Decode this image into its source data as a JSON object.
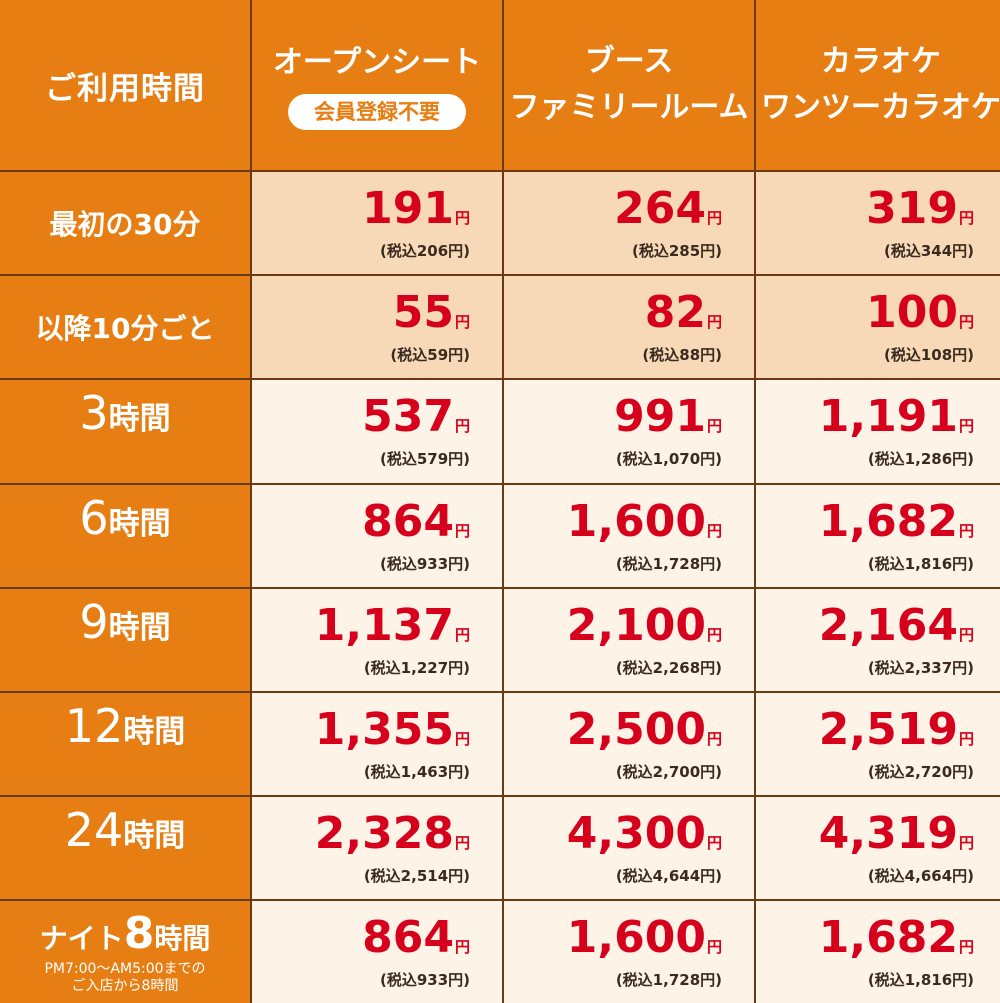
{
  "header": {
    "corner": "ご利用時間",
    "columns": [
      {
        "line1": "オープンシート",
        "badge": "会員登録不要"
      },
      {
        "line1": "ブース",
        "line2": "ファミリールーム"
      },
      {
        "line1": "カラオケ",
        "line2": "ワンツーカラオケ"
      }
    ]
  },
  "yen": "円",
  "colors": {
    "header_orange": "#e67e14",
    "price_red": "#d7001c",
    "border_brown": "#6b3a12",
    "peach": "#f7d9b7",
    "cream": "#fdf3e6"
  },
  "rows": [
    {
      "label": "最初の30分",
      "prices": [
        {
          "price": "191",
          "tax": "(税込206円)"
        },
        {
          "price": "264",
          "tax": "(税込285円)"
        },
        {
          "price": "319",
          "tax": "(税込344円)"
        }
      ]
    },
    {
      "label": "以降10分ごと",
      "prices": [
        {
          "price": "55",
          "tax": "(税込59円)"
        },
        {
          "price": "82",
          "tax": "(税込88円)"
        },
        {
          "price": "100",
          "tax": "(税込108円)"
        }
      ]
    },
    {
      "num": "3",
      "unit": "時間",
      "prices": [
        {
          "price": "537",
          "tax": "(税込579円)"
        },
        {
          "price": "991",
          "tax": "(税込1,070円)"
        },
        {
          "price": "1,191",
          "tax": "(税込1,286円)"
        }
      ]
    },
    {
      "num": "6",
      "unit": "時間",
      "prices": [
        {
          "price": "864",
          "tax": "(税込933円)"
        },
        {
          "price": "1,600",
          "tax": "(税込1,728円)"
        },
        {
          "price": "1,682",
          "tax": "(税込1,816円)"
        }
      ]
    },
    {
      "num": "9",
      "unit": "時間",
      "prices": [
        {
          "price": "1,137",
          "tax": "(税込1,227円)"
        },
        {
          "price": "2,100",
          "tax": "(税込2,268円)"
        },
        {
          "price": "2,164",
          "tax": "(税込2,337円)"
        }
      ]
    },
    {
      "num": "12",
      "unit": "時間",
      "prices": [
        {
          "price": "1,355",
          "tax": "(税込1,463円)"
        },
        {
          "price": "2,500",
          "tax": "(税込2,700円)"
        },
        {
          "price": "2,519",
          "tax": "(税込2,720円)"
        }
      ]
    },
    {
      "num": "24",
      "unit": "時間",
      "prices": [
        {
          "price": "2,328",
          "tax": "(税込2,514円)"
        },
        {
          "price": "4,300",
          "tax": "(税込4,644円)"
        },
        {
          "price": "4,319",
          "tax": "(税込4,664円)"
        }
      ]
    },
    {
      "night_pre": "ナイト",
      "num": "8",
      "unit": "時間",
      "note1": "PM7:00～AM5:00までの",
      "note2": "ご入店から8時間",
      "prices": [
        {
          "price": "864",
          "tax": "(税込933円)"
        },
        {
          "price": "1,600",
          "tax": "(税込1,728円)"
        },
        {
          "price": "1,682",
          "tax": "(税込1,816円)"
        }
      ]
    }
  ]
}
